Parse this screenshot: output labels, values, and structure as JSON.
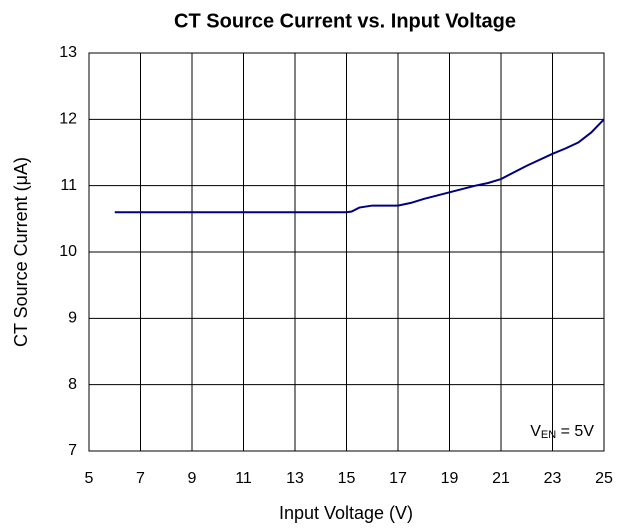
{
  "chart_data": {
    "type": "line",
    "title": "CT Source Current vs. Input Voltage",
    "xlabel": "Input Voltage (V)",
    "ylabel": "CT Source Current (μA)",
    "annotation": {
      "main": "V",
      "subscript": "EN",
      "suffix": " = 5V"
    },
    "x": [
      6,
      7,
      8,
      9,
      10,
      11,
      12,
      13,
      14,
      15,
      15.2,
      15.5,
      16,
      16.5,
      17,
      17.5,
      18,
      19,
      20,
      20.5,
      21,
      22,
      23,
      23.5,
      24,
      24.5,
      25
    ],
    "series": [
      {
        "name": "CT Source Current",
        "color": "#000080",
        "values": [
          10.6,
          10.6,
          10.6,
          10.6,
          10.6,
          10.6,
          10.6,
          10.6,
          10.6,
          10.6,
          10.61,
          10.67,
          10.7,
          10.7,
          10.7,
          10.74,
          10.8,
          10.9,
          11.0,
          11.04,
          11.1,
          11.3,
          11.48,
          11.56,
          11.65,
          11.8,
          12.0
        ]
      }
    ],
    "xlim": [
      5,
      25
    ],
    "xticks": [
      5,
      7,
      9,
      11,
      13,
      15,
      17,
      19,
      21,
      23,
      25
    ],
    "ylim": [
      7,
      13
    ],
    "yticks": [
      7,
      8,
      9,
      10,
      11,
      12,
      13
    ],
    "grid": true
  }
}
